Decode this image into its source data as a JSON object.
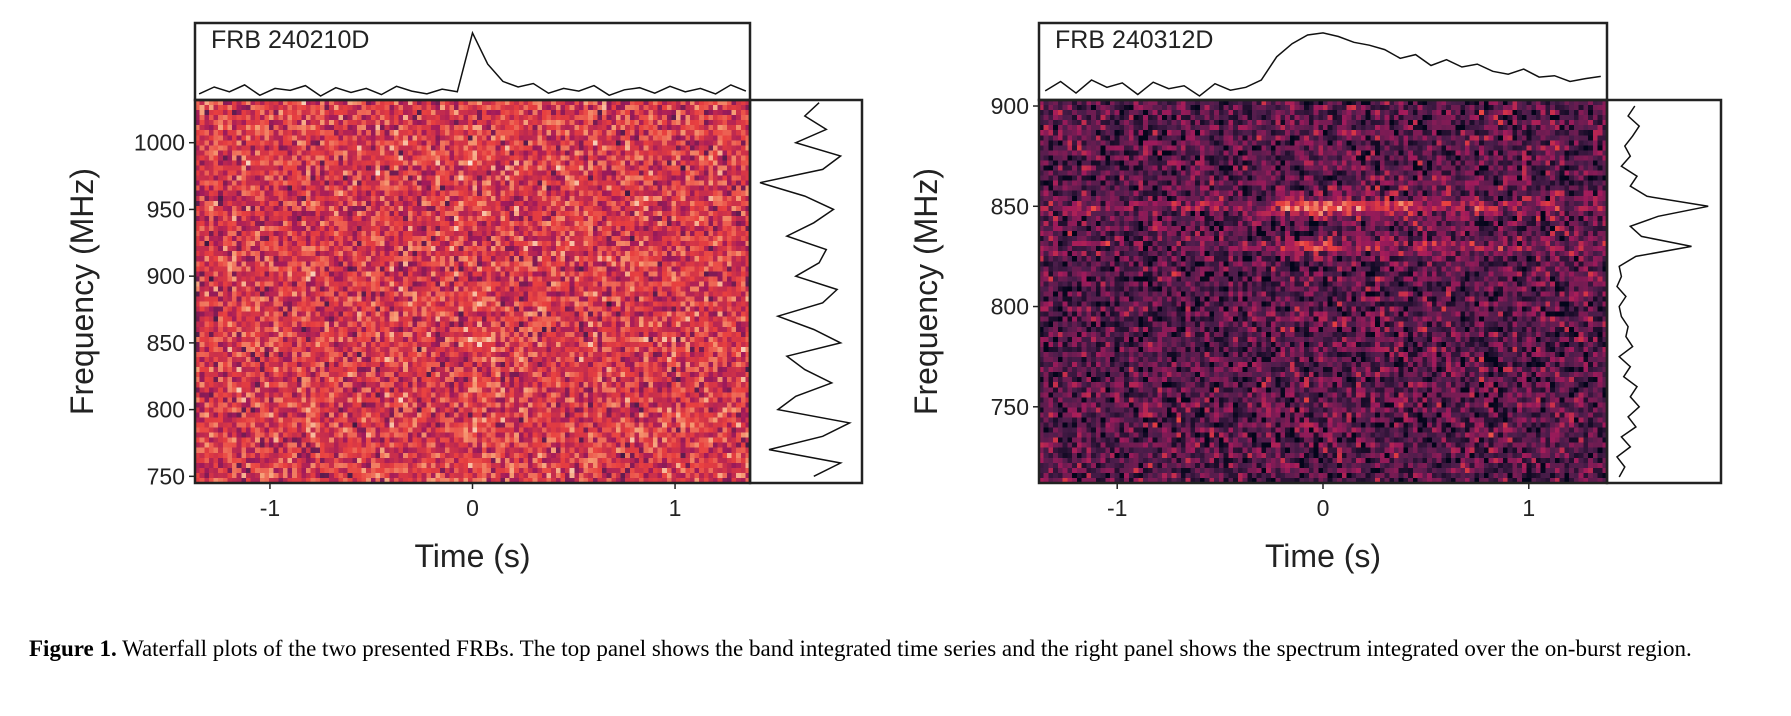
{
  "chart_data": [
    {
      "type": "waterfall",
      "title": "FRB 240210D",
      "xlabel": "Time (s)",
      "ylabel": "Frequency (MHz)",
      "xlim": [
        -1.37,
        1.37
      ],
      "xticks": [
        -1,
        0,
        1
      ],
      "ylim": [
        745,
        1032
      ],
      "yticks": [
        750,
        800,
        850,
        900,
        950,
        1000
      ],
      "time_series": {
        "x": [
          -1.35,
          -1.275,
          -1.2,
          -1.125,
          -1.05,
          -0.975,
          -0.9,
          -0.825,
          -0.75,
          -0.675,
          -0.6,
          -0.525,
          -0.45,
          -0.375,
          -0.3,
          -0.225,
          -0.15,
          -0.075,
          0,
          0.075,
          0.15,
          0.225,
          0.3,
          0.375,
          0.45,
          0.525,
          0.6,
          0.675,
          0.75,
          0.825,
          0.9,
          0.975,
          1.05,
          1.125,
          1.2,
          1.275,
          1.35
        ],
        "values": [
          0.12,
          0.22,
          0.15,
          0.25,
          0.1,
          0.2,
          0.17,
          0.24,
          0.09,
          0.21,
          0.14,
          0.2,
          0.11,
          0.23,
          0.16,
          0.12,
          0.19,
          0.15,
          1.0,
          0.55,
          0.3,
          0.22,
          0.27,
          0.13,
          0.2,
          0.16,
          0.24,
          0.1,
          0.18,
          0.21,
          0.13,
          0.23,
          0.15,
          0.2,
          0.12,
          0.25,
          0.16
        ]
      },
      "spectrum": {
        "freq": [
          750,
          760,
          770,
          780,
          790,
          800,
          810,
          820,
          830,
          840,
          850,
          860,
          870,
          880,
          890,
          900,
          910,
          920,
          930,
          940,
          950,
          960,
          970,
          980,
          990,
          1000,
          1010,
          1020,
          1030
        ],
        "values": [
          0.55,
          0.7,
          0.3,
          0.6,
          0.75,
          0.35,
          0.45,
          0.65,
          0.5,
          0.4,
          0.7,
          0.55,
          0.35,
          0.6,
          0.68,
          0.45,
          0.58,
          0.62,
          0.4,
          0.55,
          0.66,
          0.5,
          0.25,
          0.6,
          0.7,
          0.45,
          0.62,
          0.5,
          0.58
        ]
      }
    },
    {
      "type": "waterfall",
      "title": "FRB 240312D",
      "xlabel": "Time (s)",
      "ylabel": "Frequency (MHz)",
      "xlim": [
        -1.38,
        1.38
      ],
      "xticks": [
        -1,
        0,
        1
      ],
      "ylim": [
        712,
        903
      ],
      "yticks": [
        750,
        800,
        850,
        900
      ],
      "time_series": {
        "x": [
          -1.35,
          -1.275,
          -1.2,
          -1.125,
          -1.05,
          -0.975,
          -0.9,
          -0.825,
          -0.75,
          -0.675,
          -0.6,
          -0.525,
          -0.45,
          -0.375,
          -0.3,
          -0.225,
          -0.15,
          -0.075,
          0,
          0.075,
          0.15,
          0.225,
          0.3,
          0.375,
          0.45,
          0.525,
          0.6,
          0.675,
          0.75,
          0.825,
          0.9,
          0.975,
          1.05,
          1.125,
          1.2,
          1.275,
          1.35
        ],
        "values": [
          0.15,
          0.28,
          0.12,
          0.3,
          0.2,
          0.26,
          0.1,
          0.27,
          0.18,
          0.22,
          0.08,
          0.25,
          0.16,
          0.2,
          0.3,
          0.62,
          0.8,
          0.92,
          0.95,
          0.9,
          0.82,
          0.78,
          0.72,
          0.6,
          0.65,
          0.5,
          0.58,
          0.48,
          0.52,
          0.42,
          0.38,
          0.45,
          0.34,
          0.36,
          0.28,
          0.32,
          0.35
        ]
      },
      "spectrum": {
        "freq": [
          715,
          720,
          725,
          730,
          735,
          740,
          745,
          750,
          755,
          760,
          765,
          770,
          775,
          780,
          785,
          790,
          795,
          800,
          805,
          810,
          815,
          820,
          825,
          830,
          835,
          840,
          845,
          850,
          855,
          860,
          865,
          870,
          875,
          880,
          885,
          890,
          895,
          900
        ],
        "values": [
          0.2,
          0.25,
          0.18,
          0.3,
          0.22,
          0.35,
          0.28,
          0.38,
          0.3,
          0.36,
          0.24,
          0.3,
          0.2,
          0.32,
          0.26,
          0.28,
          0.22,
          0.2,
          0.26,
          0.18,
          0.22,
          0.2,
          0.35,
          0.85,
          0.4,
          0.3,
          0.55,
          1.0,
          0.45,
          0.3,
          0.36,
          0.22,
          0.3,
          0.25,
          0.32,
          0.38,
          0.28,
          0.34
        ]
      }
    }
  ],
  "caption": {
    "label": "Figure 1.",
    "text": "Waterfall plots of the two presented FRBs. The top panel shows the band integrated time series and the right panel shows the spectrum integrated over the on-burst region."
  }
}
